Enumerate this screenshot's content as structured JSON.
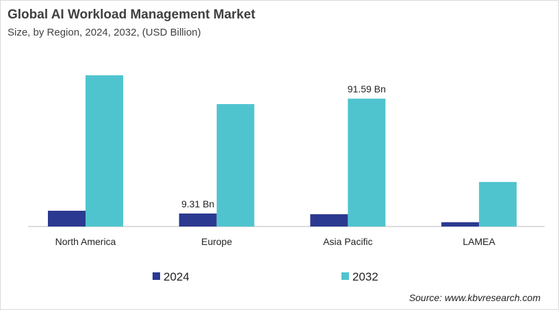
{
  "chart_data": {
    "type": "bar",
    "title": "Global AI Workload Management Market",
    "subtitle": "Size, by Region, 2024, 2032, (USD Billion)",
    "categories": [
      "North America",
      "Europe",
      "Asia Pacific",
      "LAMEA"
    ],
    "series": [
      {
        "name": "2024",
        "color": "#2b3990",
        "values": [
          11.3,
          9.31,
          8.8,
          3.1
        ]
      },
      {
        "name": "2032",
        "color": "#4fc4cf",
        "values": [
          108.3,
          87.7,
          91.59,
          31.9
        ]
      }
    ],
    "data_labels": [
      {
        "series": "2024",
        "category": "Europe",
        "text": "9.31 Bn"
      },
      {
        "series": "2032",
        "category": "Asia Pacific",
        "text": "91.59 Bn"
      }
    ],
    "ylim": [
      0,
      120
    ],
    "grid": false,
    "legend": "bottom",
    "source": "Source: www.kbvresearch.com"
  }
}
